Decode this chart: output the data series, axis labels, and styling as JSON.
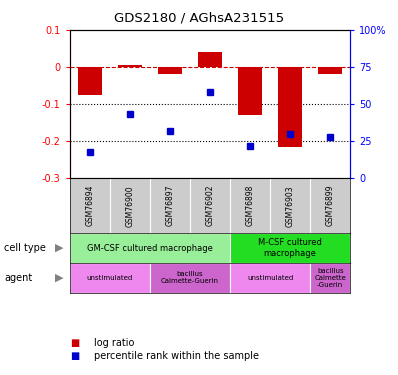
{
  "title": "GDS2180 / AGhsA231515",
  "samples": [
    "GSM76894",
    "GSM76900",
    "GSM76897",
    "GSM76902",
    "GSM76898",
    "GSM76903",
    "GSM76899"
  ],
  "log_ratio": [
    -0.075,
    0.005,
    -0.018,
    0.04,
    -0.13,
    -0.215,
    -0.018
  ],
  "percentile_rank": [
    18,
    43,
    32,
    58,
    22,
    30,
    28
  ],
  "ylim_left": [
    -0.3,
    0.1
  ],
  "ylim_right": [
    0,
    100
  ],
  "bar_color": "#cc0000",
  "dot_color": "#0000cc",
  "dashed_line_color": "#cc0000",
  "dotted_line_color": "#000000",
  "cell_type_row": [
    {
      "label": "GM-CSF cultured macrophage",
      "start": 0,
      "end": 4,
      "color": "#99ee99"
    },
    {
      "label": "M-CSF cultured\nmacrophage",
      "start": 4,
      "end": 7,
      "color": "#22dd22"
    }
  ],
  "agent_row": [
    {
      "label": "unstimulated",
      "start": 0,
      "end": 2,
      "color": "#ee88ee"
    },
    {
      "label": "bacillus\nCalmette-Guerin",
      "start": 2,
      "end": 4,
      "color": "#cc66cc"
    },
    {
      "label": "unstimulated",
      "start": 4,
      "end": 6,
      "color": "#ee88ee"
    },
    {
      "label": "bacillus\nCalmette\n-Guerin",
      "start": 6,
      "end": 7,
      "color": "#cc66cc"
    }
  ],
  "left_labels": [
    "cell type",
    "agent"
  ],
  "legend_items": [
    {
      "color": "#cc0000",
      "label": "log ratio"
    },
    {
      "color": "#0000cc",
      "label": "percentile rank within the sample"
    }
  ],
  "sample_bg": "#cccccc"
}
